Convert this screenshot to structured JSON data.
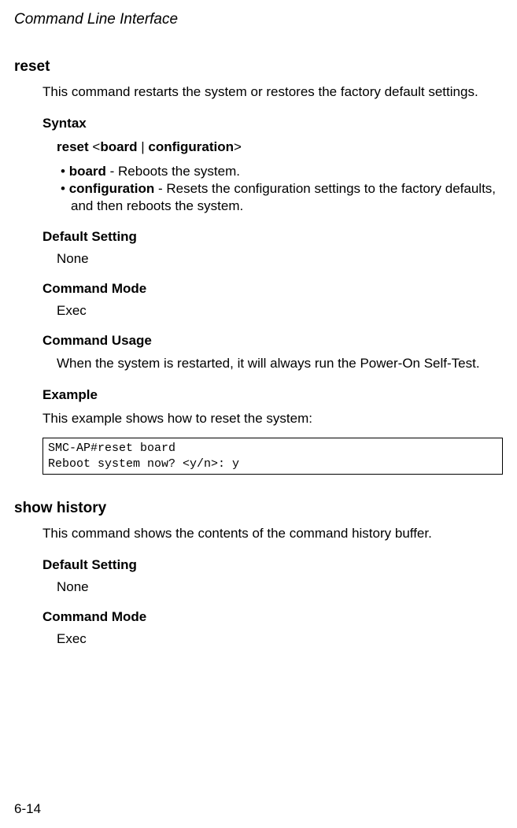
{
  "header": {
    "title": "Command Line Interface"
  },
  "cmd1": {
    "name": "reset",
    "desc": "This command restarts the system or restores the factory default settings.",
    "syntax_heading": "Syntax",
    "syntax_prefix": "reset",
    "syntax_lt": "<",
    "syntax_opt1": "board",
    "syntax_pipe": " | ",
    "syntax_opt2": "configuration",
    "syntax_gt": ">",
    "bullets": [
      {
        "term": "board",
        "desc": " - Reboots the system."
      },
      {
        "term": "configuration",
        "desc": " - Resets the configuration settings to the factory defaults, and then reboots the system."
      }
    ],
    "default_heading": "Default Setting",
    "default_value": "None",
    "mode_heading": "Command Mode",
    "mode_value": "Exec",
    "usage_heading": "Command Usage",
    "usage_text": "When the system is restarted, it will always run the Power-On Self-Test.",
    "example_heading": "Example",
    "example_intro": "This example shows how to reset the system:",
    "code": "SMC-AP#reset board\nReboot system now? <y/n>: y"
  },
  "cmd2": {
    "name": "show history",
    "desc": "This command shows the contents of the command history buffer.",
    "default_heading": "Default Setting",
    "default_value": "None",
    "mode_heading": "Command Mode",
    "mode_value": "Exec"
  },
  "footer": {
    "page": "6-14"
  }
}
